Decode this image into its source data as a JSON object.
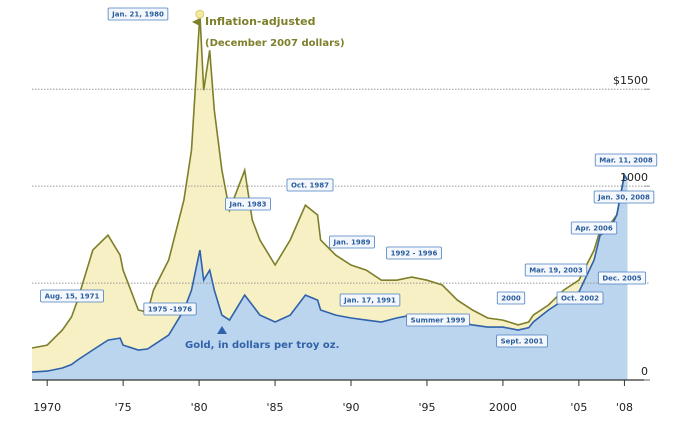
{
  "chart_data": {
    "type": "area",
    "x": [
      1969,
      1970,
      1971,
      1971.6,
      1972,
      1973,
      1974,
      1974.8,
      1975,
      1976,
      1976.6,
      1977,
      1978,
      1979,
      1979.5,
      1980.05,
      1980.3,
      1980.7,
      1981,
      1981.5,
      1982,
      1983,
      1983.5,
      1984,
      1985,
      1986,
      1987,
      1987.8,
      1988,
      1989,
      1990,
      1991,
      1992,
      1993,
      1994,
      1995,
      1996,
      1997,
      1998,
      1999,
      2000,
      2001,
      2001.7,
      2002,
      2003,
      2004,
      2005,
      2006,
      2006.4,
      2007,
      2007.5,
      2008,
      2008.2
    ],
    "series": [
      {
        "name": "Inflation-adjusted",
        "note": "(December 2007 dollars)",
        "color": "#7d7f2a",
        "fill": "#f6f0c4",
        "values": [
          165,
          180,
          258,
          325,
          412,
          670,
          747,
          644,
          567,
          361,
          350,
          464,
          619,
          928,
          1186,
          1887,
          1495,
          1701,
          1392,
          1082,
          876,
          1082,
          825,
          722,
          593,
          722,
          902,
          851,
          722,
          644,
          593,
          567,
          515,
          515,
          531,
          515,
          490,
          412,
          361,
          320,
          309,
          284,
          299,
          335,
          387,
          464,
          515,
          670,
          773,
          799,
          851,
          1057,
          1031
        ]
      },
      {
        "name": "Gold, in dollars per troy oz.",
        "color": "#2f62aa",
        "fill": "#bcd5ee",
        "values": [
          41,
          46,
          62,
          80,
          103,
          155,
          206,
          216,
          180,
          155,
          160,
          180,
          232,
          361,
          464,
          670,
          515,
          567,
          464,
          335,
          309,
          438,
          387,
          335,
          299,
          335,
          438,
          412,
          361,
          335,
          320,
          309,
          299,
          320,
          335,
          335,
          335,
          299,
          284,
          273,
          273,
          258,
          270,
          299,
          361,
          412,
          454,
          619,
          747,
          773,
          851,
          1057,
          1031
        ]
      }
    ],
    "xlim": [
      1969,
      2008.3
    ],
    "xticks": [
      1970,
      {
        "value": 1975,
        "label": "'75"
      },
      {
        "value": 1980,
        "label": "'80"
      },
      {
        "value": 1985,
        "label": "'85"
      },
      {
        "value": 1990,
        "label": "'90"
      },
      {
        "value": 1995,
        "label": "'95"
      },
      2000,
      {
        "value": 2005,
        "label": "'05"
      },
      {
        "value": 2008,
        "label": "'08"
      }
    ],
    "ylim": [
      0,
      1950
    ],
    "yticks": [
      0,
      1000,
      {
        "value": 1500,
        "label": "$1500"
      }
    ],
    "gridlines": [
      500,
      1000,
      1500
    ],
    "annotations": [
      "Jan. 21, 1980",
      "Aug. 15, 1971",
      "1975 -1976",
      "Jan. 1983",
      "Oct. 1987",
      "Jan. 1989",
      "1992 - 1996",
      "Jan. 17, 1991",
      "Summer 1999",
      "2000",
      "Sept. 2001",
      "Mar. 19, 2003",
      "Oct. 2002",
      "Apr. 2006",
      "Jan. 30, 2008",
      "Mar. 11, 2008",
      "Dec. 2005"
    ]
  }
}
